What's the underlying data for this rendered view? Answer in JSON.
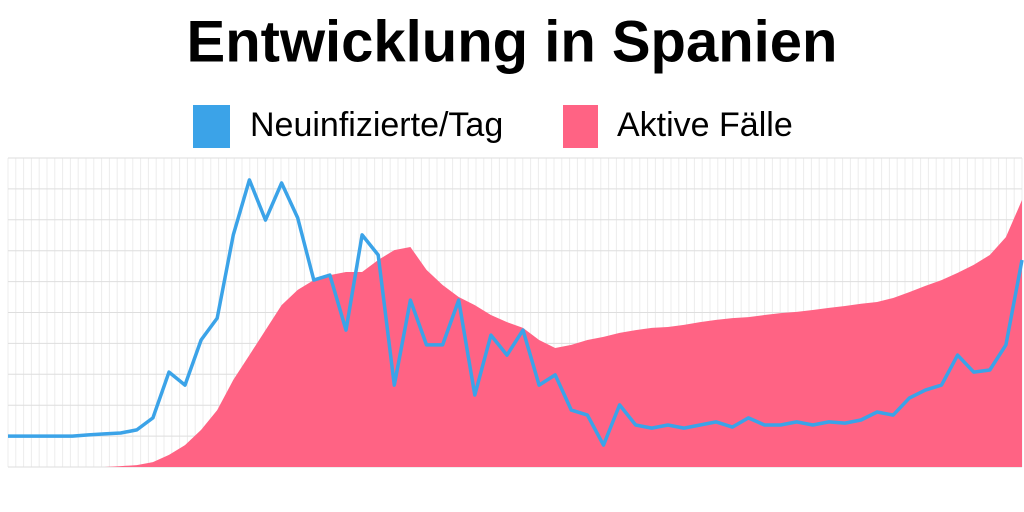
{
  "chart_data": {
    "type": "line",
    "title": "Entwicklung in Spanien",
    "series": [
      {
        "name": "Aktive Fälle",
        "color": "#ff6384",
        "area": true,
        "values": [
          0,
          0,
          0,
          0,
          0,
          0,
          0,
          0.3,
          0.6,
          1.6,
          3.9,
          7.1,
          12.0,
          18.4,
          28.2,
          36.2,
          44.3,
          52.4,
          57.3,
          60.5,
          62.1,
          63.1,
          63.1,
          67.0,
          70.2,
          71.2,
          63.8,
          58.9,
          55.0,
          52.4,
          49.2,
          46.9,
          45.0,
          41.1,
          38.5,
          39.5,
          41.1,
          42.1,
          43.4,
          44.3,
          45.0,
          45.3,
          46.0,
          46.9,
          47.6,
          48.2,
          48.5,
          49.2,
          49.8,
          50.2,
          50.8,
          51.5,
          52.1,
          52.8,
          53.4,
          54.7,
          56.6,
          58.6,
          60.5,
          62.8,
          65.4,
          68.6,
          74.4,
          86.4
        ]
      },
      {
        "name": "Neuinfizierte/Tag",
        "color": "#3ba3e8",
        "area": false,
        "values": [
          10.0,
          10.0,
          10.0,
          10.0,
          10.0,
          10.4,
          10.7,
          11.0,
          12.0,
          15.9,
          30.7,
          26.5,
          41.1,
          48.2,
          75.1,
          92.9,
          79.9,
          91.9,
          80.6,
          60.5,
          62.1,
          44.3,
          75.1,
          68.6,
          26.5,
          54.0,
          39.5,
          39.5,
          54.0,
          23.3,
          42.7,
          36.2,
          44.3,
          26.5,
          29.8,
          18.4,
          16.8,
          7.1,
          20.1,
          13.6,
          12.6,
          13.6,
          12.6,
          13.6,
          14.6,
          12.9,
          15.9,
          13.6,
          13.6,
          14.6,
          13.6,
          14.6,
          14.2,
          15.2,
          17.8,
          16.8,
          22.3,
          24.9,
          26.5,
          36.2,
          30.7,
          31.4,
          39.5,
          67.0
        ]
      }
    ],
    "ylim": [
      0,
      100
    ],
    "yticks": [
      0,
      10,
      20,
      30,
      40,
      50,
      60,
      70,
      80,
      90,
      100
    ],
    "grid": true
  }
}
